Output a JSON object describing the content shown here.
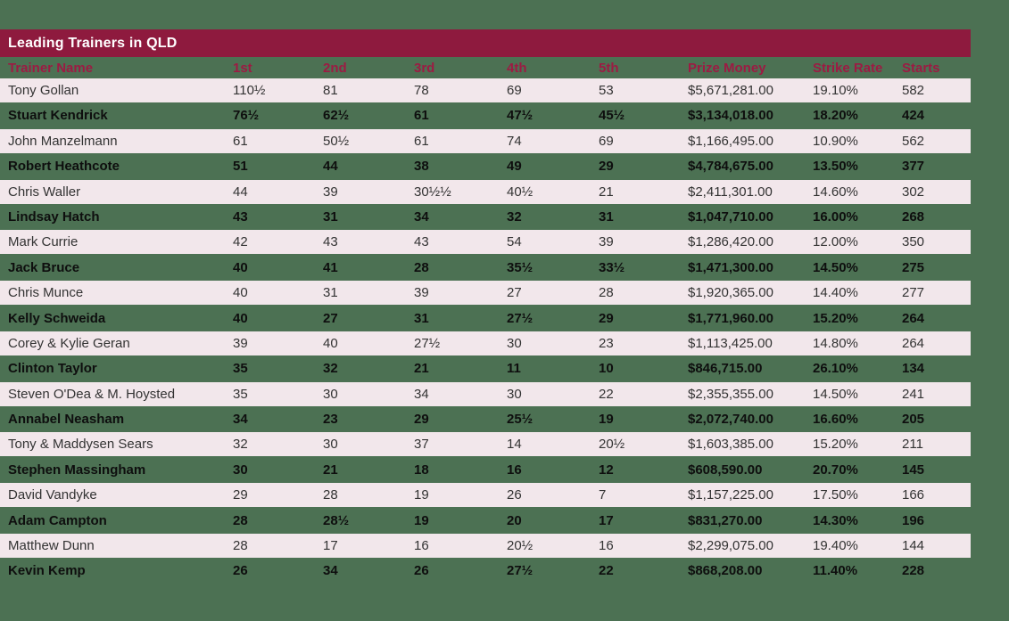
{
  "title_bar": {
    "label": "Leading Trainers in QLD"
  },
  "colors": {
    "background_green": "#4C7153",
    "title_bar_maroon": "#8E1A3E",
    "header_text_crimson": "#9C1B43",
    "row_pink": "#F2E7EB",
    "row_text_pink_row": "#333333",
    "row_text_green_row": "#0E0E0E",
    "title_text": "#FFFFFF"
  },
  "chart_data": {
    "type": "table",
    "title": "Leading Trainers in QLD",
    "legend_position": "none",
    "grid": false,
    "columns": [
      "Trainer Name",
      "1st",
      "2nd",
      "3rd",
      "4th",
      "5th",
      "Prize Money",
      "Strike Rate",
      "Starts"
    ],
    "rows": [
      [
        "Tony Gollan",
        "110½",
        "81",
        "78",
        "69",
        "53",
        "$5,671,281.00",
        "19.10%",
        "582"
      ],
      [
        "Stuart Kendrick",
        "76½",
        "62½",
        "61",
        "47½",
        "45½",
        "$3,134,018.00",
        "18.20%",
        "424"
      ],
      [
        "John Manzelmann",
        "61",
        "50½",
        "61",
        "74",
        "69",
        "$1,166,495.00",
        "10.90%",
        "562"
      ],
      [
        "Robert Heathcote",
        "51",
        "44",
        "38",
        "49",
        "29",
        "$4,784,675.00",
        "13.50%",
        "377"
      ],
      [
        "Chris Waller",
        "44",
        "39",
        "30½½",
        "40½",
        "21",
        "$2,411,301.00",
        "14.60%",
        "302"
      ],
      [
        "Lindsay Hatch",
        "43",
        "31",
        "34",
        "32",
        "31",
        "$1,047,710.00",
        "16.00%",
        "268"
      ],
      [
        "Mark Currie",
        "42",
        "43",
        "43",
        "54",
        "39",
        "$1,286,420.00",
        "12.00%",
        "350"
      ],
      [
        "Jack Bruce",
        "40",
        "41",
        "28",
        "35½",
        "33½",
        "$1,471,300.00",
        "14.50%",
        "275"
      ],
      [
        "Chris Munce",
        "40",
        "31",
        "39",
        "27",
        "28",
        "$1,920,365.00",
        "14.40%",
        "277"
      ],
      [
        "Kelly Schweida",
        "40",
        "27",
        "31",
        "27½",
        "29",
        "$1,771,960.00",
        "15.20%",
        "264"
      ],
      [
        "Corey & Kylie Geran",
        "39",
        "40",
        "27½",
        "30",
        "23",
        "$1,113,425.00",
        "14.80%",
        "264"
      ],
      [
        "Clinton Taylor",
        "35",
        "32",
        "21",
        "11",
        "10",
        "$846,715.00",
        "26.10%",
        "134"
      ],
      [
        "Steven O'Dea & M. Hoysted",
        "35",
        "30",
        "34",
        "30",
        "22",
        "$2,355,355.00",
        "14.50%",
        "241"
      ],
      [
        "Annabel Neasham",
        "34",
        "23",
        "29",
        "25½",
        "19",
        "$2,072,740.00",
        "16.60%",
        "205"
      ],
      [
        "Tony & Maddysen Sears",
        "32",
        "30",
        "37",
        "14",
        "20½",
        "$1,603,385.00",
        "15.20%",
        "211"
      ],
      [
        "Stephen Massingham",
        "30",
        "21",
        "18",
        "16",
        "12",
        "$608,590.00",
        "20.70%",
        "145"
      ],
      [
        "David Vandyke",
        "29",
        "28",
        "19",
        "26",
        "7",
        "$1,157,225.00",
        "17.50%",
        "166"
      ],
      [
        "Adam Campton",
        "28",
        "28½",
        "19",
        "20",
        "17",
        "$831,270.00",
        "14.30%",
        "196"
      ],
      [
        "Matthew Dunn",
        "28",
        "17",
        "16",
        "20½",
        "16",
        "$2,299,075.00",
        "19.40%",
        "144"
      ],
      [
        "Kevin Kemp",
        "26",
        "34",
        "26",
        "27½",
        "22",
        "$868,208.00",
        "11.40%",
        "228"
      ]
    ]
  }
}
